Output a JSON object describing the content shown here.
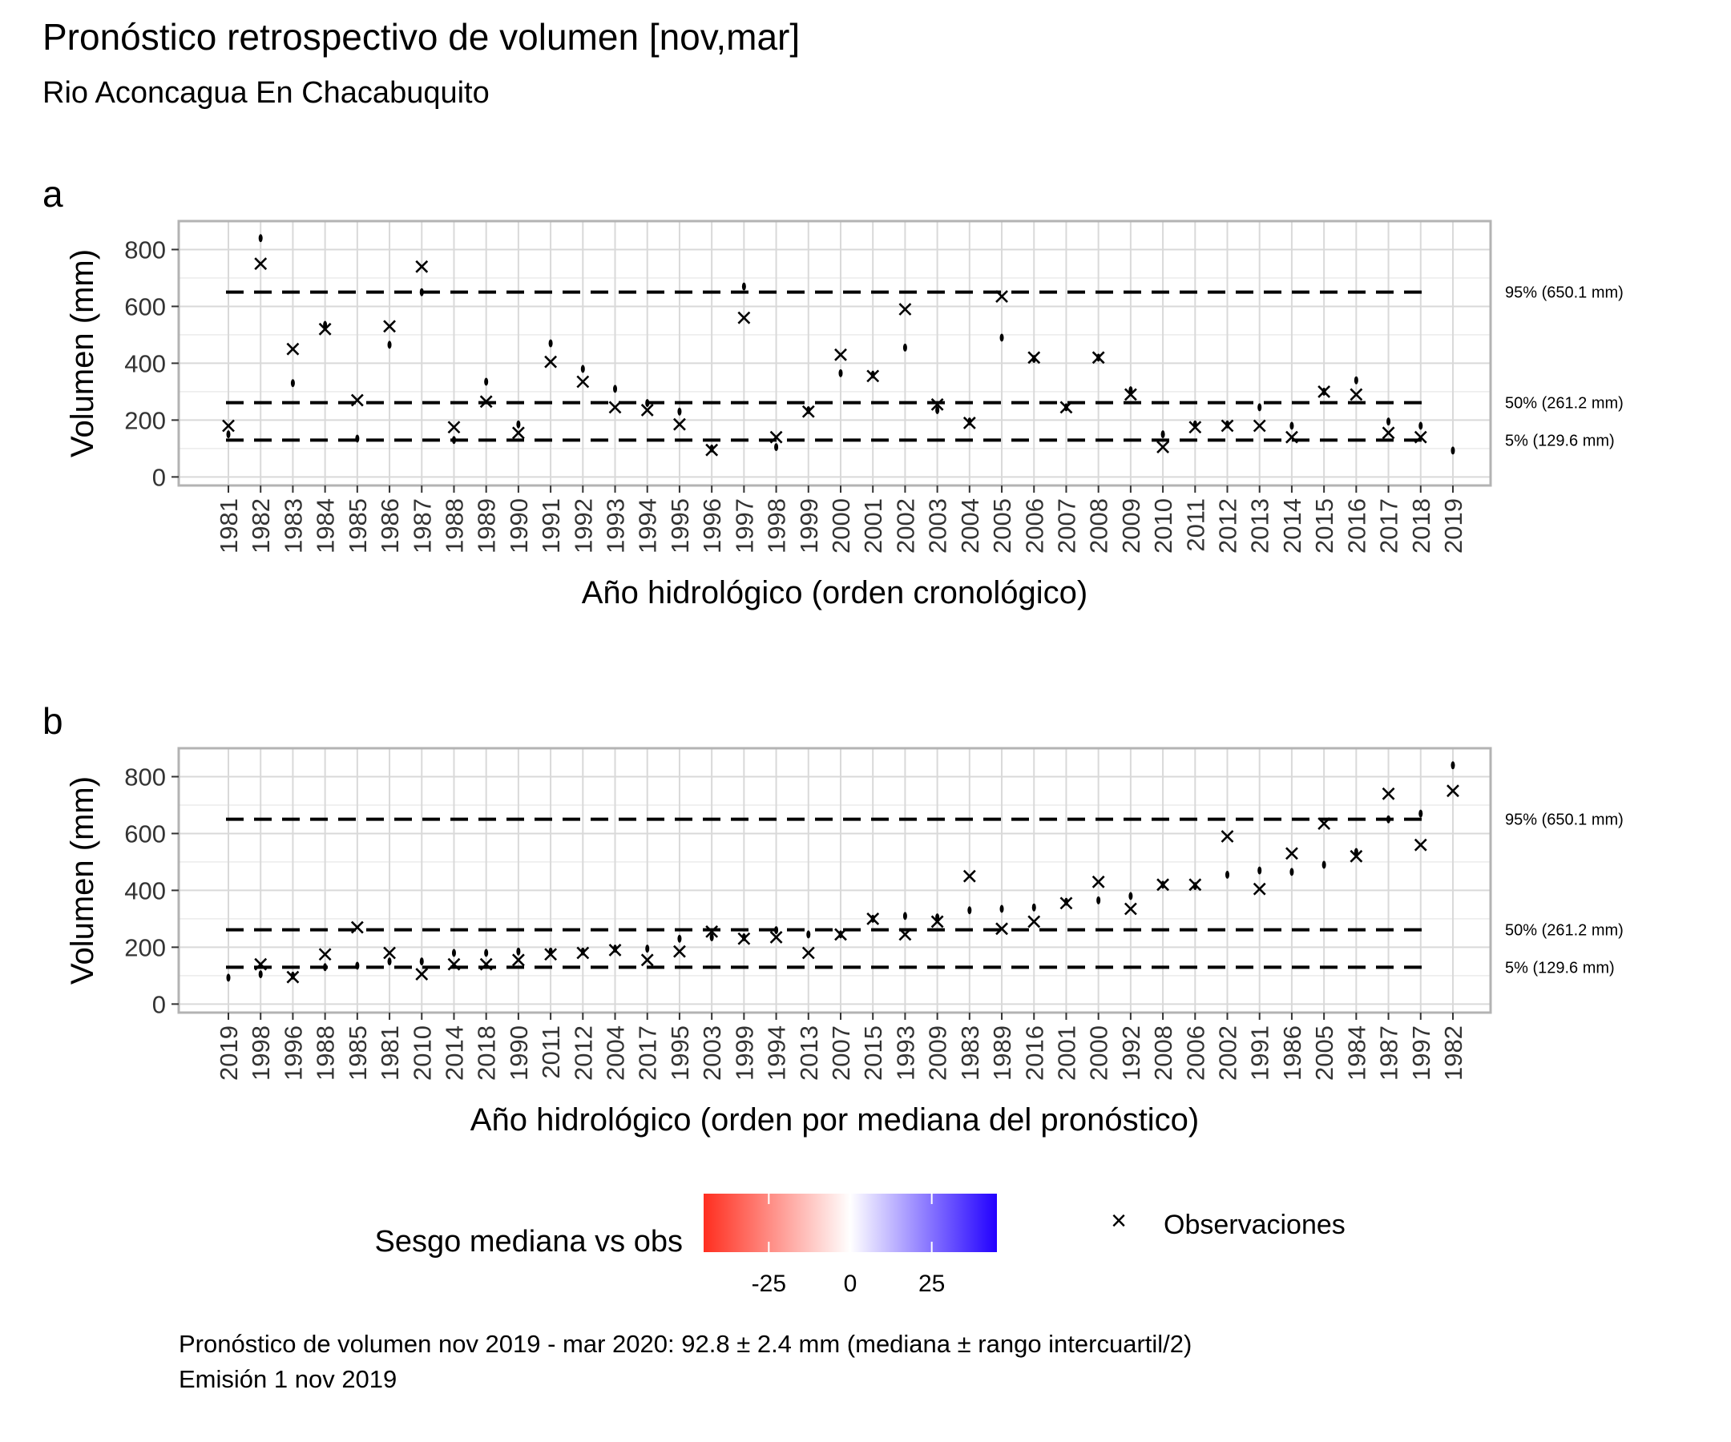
{
  "title": "Pronóstico retrospectivo de volumen [nov,mar]",
  "subtitle": "Rio Aconcagua En Chacabuquito",
  "chart_data": [
    {
      "panel": "a",
      "type": "scatter",
      "xlabel": "Año hidrológico (orden cronológico)",
      "ylabel": "Volumen (mm)",
      "ylim": [
        -30,
        900
      ],
      "yticks": [
        0,
        200,
        400,
        600,
        800
      ],
      "grid": true,
      "highlight_category": "2019",
      "highlight_color": "#FF0000",
      "categories": [
        "1981",
        "1982",
        "1983",
        "1984",
        "1985",
        "1986",
        "1987",
        "1988",
        "1989",
        "1990",
        "1991",
        "1992",
        "1993",
        "1994",
        "1995",
        "1996",
        "1997",
        "1998",
        "1999",
        "2000",
        "2001",
        "2002",
        "2003",
        "2004",
        "2005",
        "2006",
        "2007",
        "2008",
        "2009",
        "2010",
        "2011",
        "2012",
        "2013",
        "2014",
        "2015",
        "2016",
        "2017",
        "2018",
        "2019"
      ],
      "observations": [
        180,
        750,
        450,
        520,
        270,
        530,
        740,
        175,
        265,
        155,
        405,
        335,
        245,
        235,
        185,
        95,
        560,
        140,
        230,
        430,
        355,
        590,
        255,
        190,
        635,
        420,
        245,
        420,
        290,
        105,
        175,
        180,
        180,
        140,
        300,
        290,
        155,
        140,
        null
      ],
      "forecast_median": [
        150,
        840,
        330,
        535,
        135,
        465,
        650,
        130,
        335,
        185,
        470,
        380,
        310,
        260,
        230,
        100,
        670,
        105,
        235,
        365,
        360,
        455,
        235,
        195,
        490,
        415,
        245,
        420,
        305,
        150,
        185,
        185,
        245,
        180,
        300,
        340,
        195,
        180,
        92.8
      ],
      "reference_lines": [
        {
          "label": "95% (650.1 mm)",
          "value": 650.1
        },
        {
          "label": "50% (261.2 mm)",
          "value": 261.2
        },
        {
          "label": "5% (129.6 mm)",
          "value": 129.6
        }
      ]
    },
    {
      "panel": "b",
      "type": "scatter",
      "xlabel": "Año hidrológico (orden por mediana del pronóstico)",
      "ylabel": "Volumen (mm)",
      "ylim": [
        -30,
        900
      ],
      "yticks": [
        0,
        200,
        400,
        600,
        800
      ],
      "grid": true,
      "highlight_category": "2019",
      "highlight_color": "#FF0000",
      "categories": [
        "2019",
        "1998",
        "1996",
        "1988",
        "1985",
        "1981",
        "2010",
        "2014",
        "2018",
        "1990",
        "2011",
        "2012",
        "2004",
        "2017",
        "1995",
        "2003",
        "1999",
        "1994",
        "2013",
        "2007",
        "2015",
        "1993",
        "2009",
        "1983",
        "1989",
        "2016",
        "2001",
        "2000",
        "1992",
        "2008",
        "2006",
        "2002",
        "1991",
        "1986",
        "2005",
        "1984",
        "1987",
        "1997",
        "1982"
      ],
      "observations": [
        null,
        140,
        95,
        175,
        270,
        180,
        105,
        140,
        140,
        155,
        175,
        180,
        190,
        155,
        185,
        255,
        230,
        235,
        180,
        245,
        300,
        245,
        290,
        450,
        265,
        290,
        355,
        430,
        335,
        420,
        420,
        590,
        405,
        530,
        635,
        520,
        740,
        560,
        750
      ],
      "forecast_median": [
        92.8,
        105,
        100,
        130,
        135,
        150,
        150,
        180,
        180,
        185,
        185,
        185,
        195,
        195,
        230,
        235,
        235,
        260,
        245,
        245,
        300,
        310,
        305,
        330,
        335,
        340,
        360,
        365,
        380,
        420,
        415,
        455,
        470,
        465,
        490,
        535,
        650,
        670,
        840
      ],
      "reference_lines": [
        {
          "label": "95% (650.1 mm)",
          "value": 650.1
        },
        {
          "label": "50% (261.2 mm)",
          "value": 261.2
        },
        {
          "label": "5% (129.6 mm)",
          "value": 129.6
        }
      ]
    }
  ],
  "legend": {
    "colorbar_title": "Sesgo mediana vs obs",
    "colorbar_ticks": [
      "-25",
      "0",
      "25"
    ],
    "colorbar_tick_values": [
      -25,
      0,
      25
    ],
    "colorbar_range": [
      -45,
      45
    ],
    "colorbar_colors": [
      "#FF2E1F",
      "#FFFFFF",
      "#2200FF"
    ],
    "observations_symbol": "×",
    "observations_label": "Observaciones"
  },
  "caption": {
    "line1": "Pronóstico de volumen nov 2019 - mar 2020: 92.8 ± 2.4 mm (mediana ± rango intercuartil/2)",
    "line2": "Emisión 1 nov 2019"
  }
}
